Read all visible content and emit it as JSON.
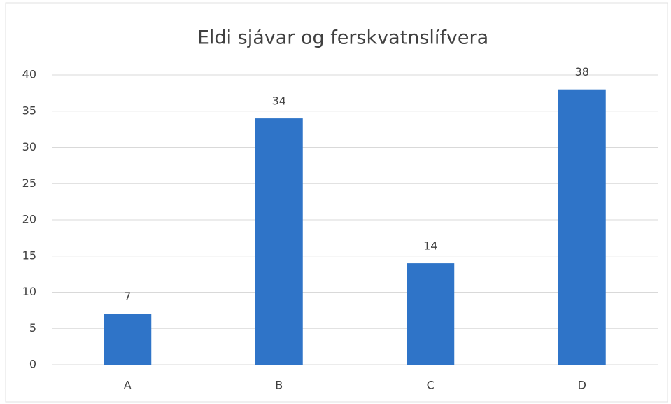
{
  "chart_data": {
    "type": "bar",
    "title": "Eldi sjávar og ferskvatnslífvera",
    "categories": [
      "A",
      "B",
      "C",
      "D"
    ],
    "values": [
      7,
      34,
      14,
      38
    ],
    "color": "#2f74c8",
    "ylim": [
      0,
      40
    ],
    "yticks": [
      0,
      5,
      10,
      15,
      20,
      25,
      30,
      35,
      40
    ],
    "grid": true,
    "data_labels": true
  }
}
